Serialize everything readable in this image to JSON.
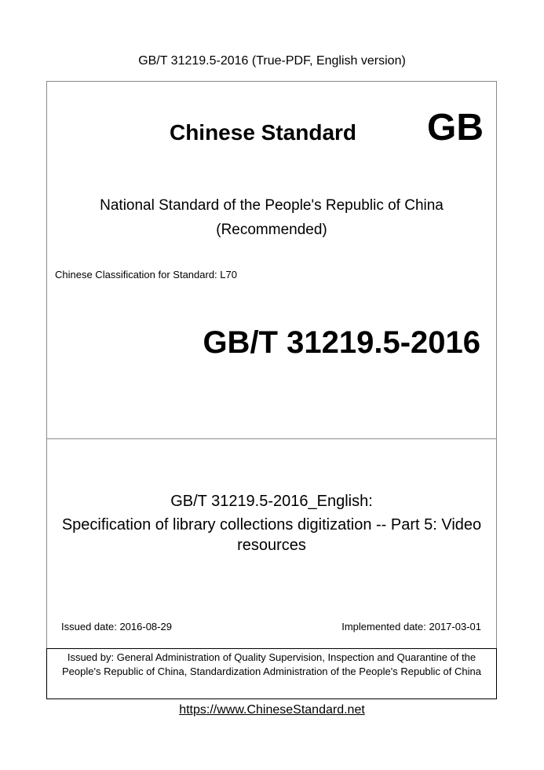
{
  "header": {
    "text": "GB/T 31219.5-2016 (True-PDF, English version)"
  },
  "cover": {
    "title": "Chinese Standard",
    "mark": "GB",
    "subtitle_lines": [
      "National Standard of the People's Republic of China",
      "(Recommended)"
    ],
    "classification": "Chinese Classification for Standard: L70",
    "code": "GB/T 31219.5-2016"
  },
  "details": {
    "english_code": "GB/T 31219.5-2016_English:",
    "name": "Specification of library collections digitization -- Part 5: Video resources",
    "issued": "Issued date: 2016-08-29",
    "implemented": "Implemented date: 2017-03-01"
  },
  "issuer": {
    "text": "Issued by: General Administration of Quality Supervision, Inspection and Quarantine of the People's Republic of China, Standardization Administration of the People's Republic of China"
  },
  "footer": {
    "link": "https://www.ChineseStandard.net"
  }
}
